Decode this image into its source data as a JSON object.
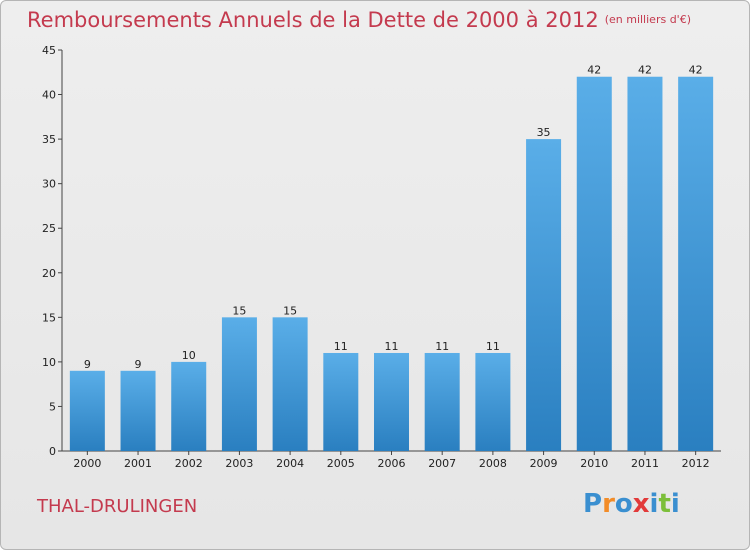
{
  "chart_title": "Remboursements Annuels de la Dette de 2000 à 2012",
  "chart_unit": "(en milliers d'€)",
  "commune_name": "THAL-DRULINGEN",
  "logo": {
    "text": "Proxiti",
    "letters": [
      {
        "ch": "P",
        "color": "#3a8fd0"
      },
      {
        "ch": "r",
        "color": "#f28c28"
      },
      {
        "ch": "o",
        "color": "#3a8fd0"
      },
      {
        "ch": "x",
        "color": "#e23a3a"
      },
      {
        "ch": "i",
        "color": "#3a8fd0"
      },
      {
        "ch": "t",
        "color": "#7cbf3a"
      },
      {
        "ch": "i",
        "color": "#3a8fd0"
      }
    ]
  },
  "colors": {
    "bar_top": "#5aaee8",
    "bar_bottom": "#2a7fc0",
    "title": "#c43a4e"
  },
  "chart_data": {
    "type": "bar",
    "categories": [
      "2000",
      "2001",
      "2002",
      "2003",
      "2004",
      "2005",
      "2006",
      "2007",
      "2008",
      "2009",
      "2010",
      "2011",
      "2012"
    ],
    "values": [
      9,
      9,
      10,
      15,
      15,
      11,
      11,
      11,
      11,
      35,
      42,
      42,
      42
    ],
    "title": "Remboursements Annuels de la Dette de 2000 à 2012",
    "ylim": [
      0,
      45
    ],
    "yticks": [
      0,
      5,
      10,
      15,
      20,
      25,
      30,
      35,
      40,
      45
    ],
    "grid": false
  }
}
